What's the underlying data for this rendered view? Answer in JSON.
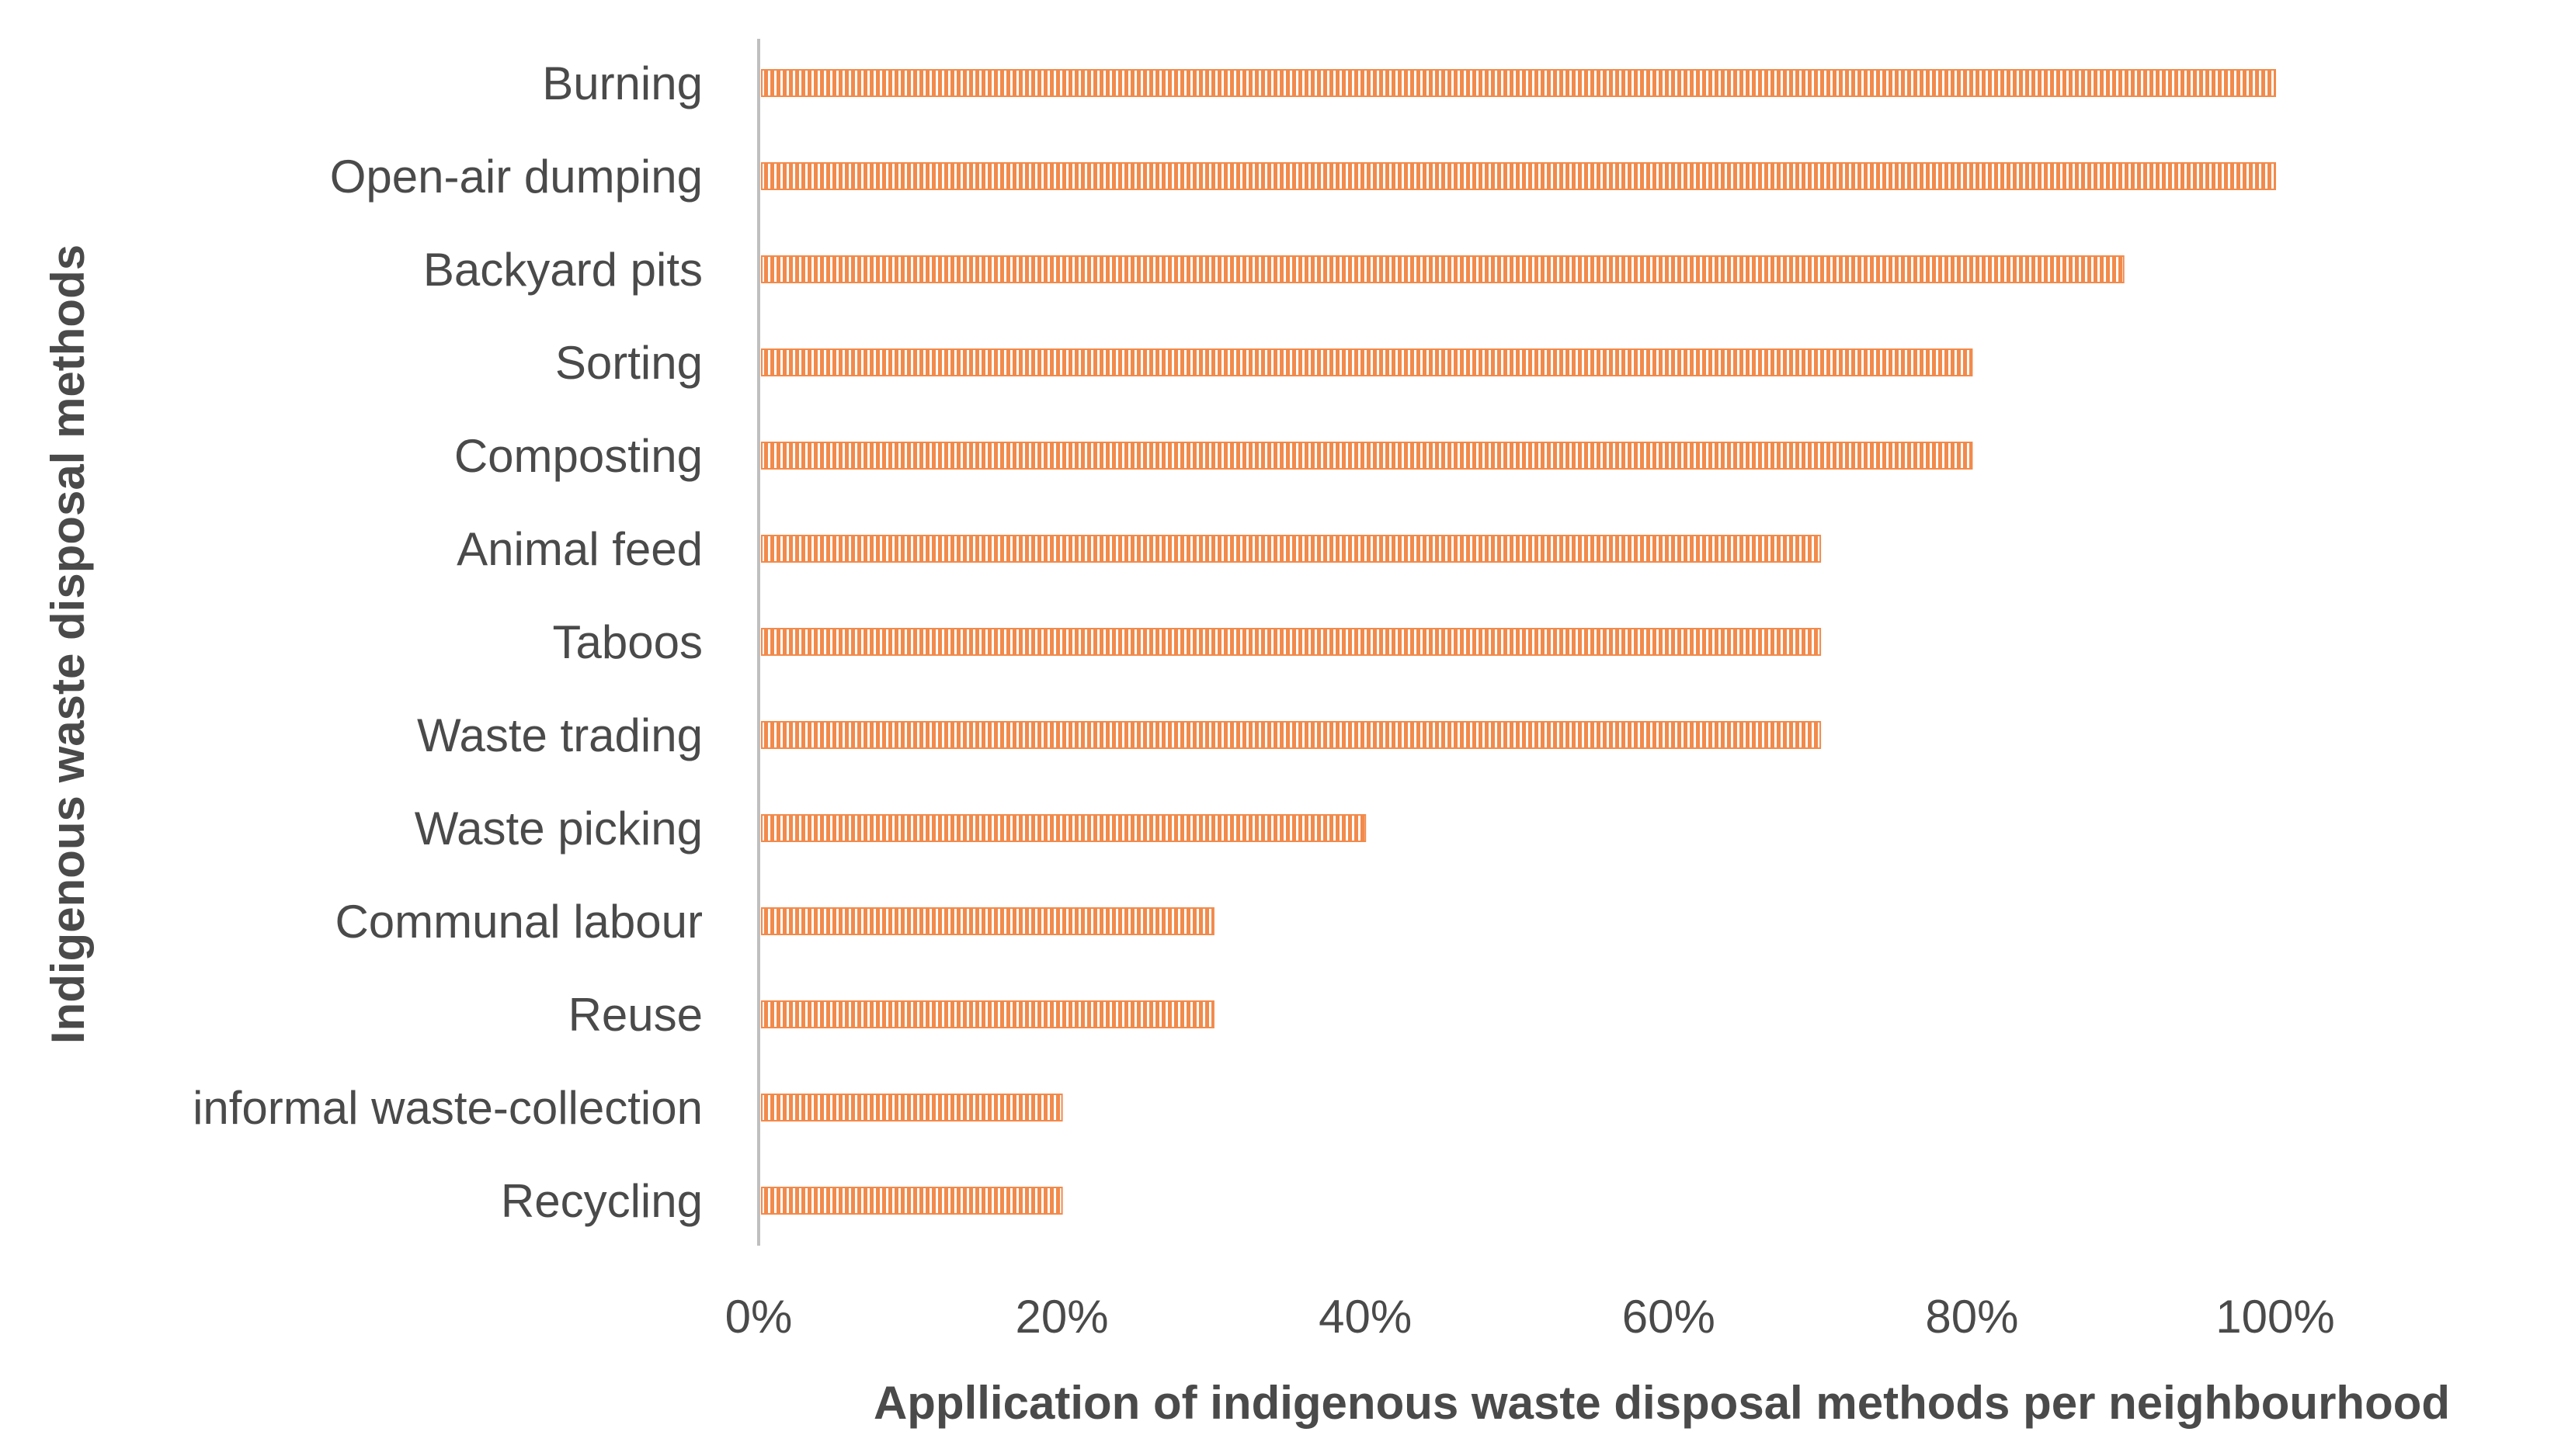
{
  "chart_data": {
    "type": "bar",
    "orientation": "horizontal",
    "categories": [
      "Burning",
      "Open-air dumping",
      "Backyard pits",
      "Sorting",
      "Composting",
      "Animal feed",
      "Taboos",
      "Waste trading",
      "Waste picking",
      "Communal labour",
      "Reuse",
      "informal waste-collection",
      "Recycling"
    ],
    "values": [
      1.0,
      1.0,
      0.9,
      0.8,
      0.8,
      0.7,
      0.7,
      0.7,
      0.4,
      0.3,
      0.3,
      0.2,
      0.2
    ],
    "xlim": [
      0,
      1.0
    ],
    "x_ticks": [
      "0%",
      "20%",
      "40%",
      "60%",
      "80%",
      "100%"
    ],
    "xlabel": "Appllication of indigenous waste disposal methods per neighbourhood",
    "ylabel": "Indigenous waste disposal methods",
    "grid": false,
    "bar_color": "#F28A4B",
    "bar_pattern": "vertical-stripes"
  }
}
